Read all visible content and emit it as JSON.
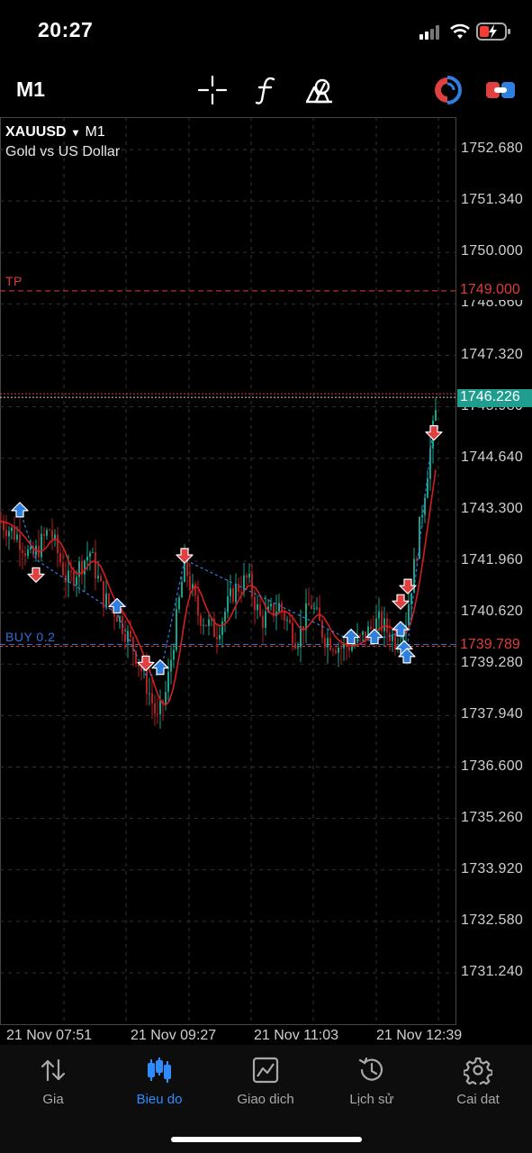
{
  "status_bar": {
    "time": "20:27"
  },
  "toolbar": {
    "timeframe": "M1",
    "icons": [
      "crosshair-icon",
      "indicators-icon",
      "objects-icon",
      "one-click-trading-icon",
      "trade-toggle-icon"
    ]
  },
  "chart": {
    "symbol": "XAUUSD",
    "symbol_arrow": "▾",
    "timeframe": "M1",
    "description": "Gold vs US Dollar",
    "price_axis": [
      "1752.680",
      "1751.340",
      "1750.000",
      "1748.660",
      "1747.320",
      "1745.980",
      "1744.640",
      "1743.300",
      "1741.960",
      "1740.620",
      "1739.280",
      "1737.940",
      "1736.600",
      "1735.260",
      "1733.920",
      "1732.580",
      "1731.240"
    ],
    "time_axis": [
      "21 Nov 07:51",
      "21 Nov 09:27",
      "21 Nov 11:03",
      "21 Nov 12:39"
    ],
    "tp_label": "TP",
    "tp_price": "1749.000",
    "bid_price": "1746.226",
    "ask_price_hidden": "1746.351",
    "buy_label": "BUY 0.2",
    "buy_price": "1739.789",
    "colors": {
      "tp": "#e03b3b",
      "bid": "#1f9e8f",
      "buy": "#2f6fd6",
      "ma": "#d21f1f",
      "grid": "#3a3a3a"
    }
  },
  "nav": {
    "items": [
      {
        "label": "Gia",
        "icon": "quotes-icon"
      },
      {
        "label": "Bieu do",
        "icon": "chart-icon"
      },
      {
        "label": "Giao dich",
        "icon": "trade-icon"
      },
      {
        "label": "Lịch sử",
        "icon": "history-icon"
      },
      {
        "label": "Cai dat",
        "icon": "settings-icon"
      }
    ],
    "active": "Bieu do"
  }
}
